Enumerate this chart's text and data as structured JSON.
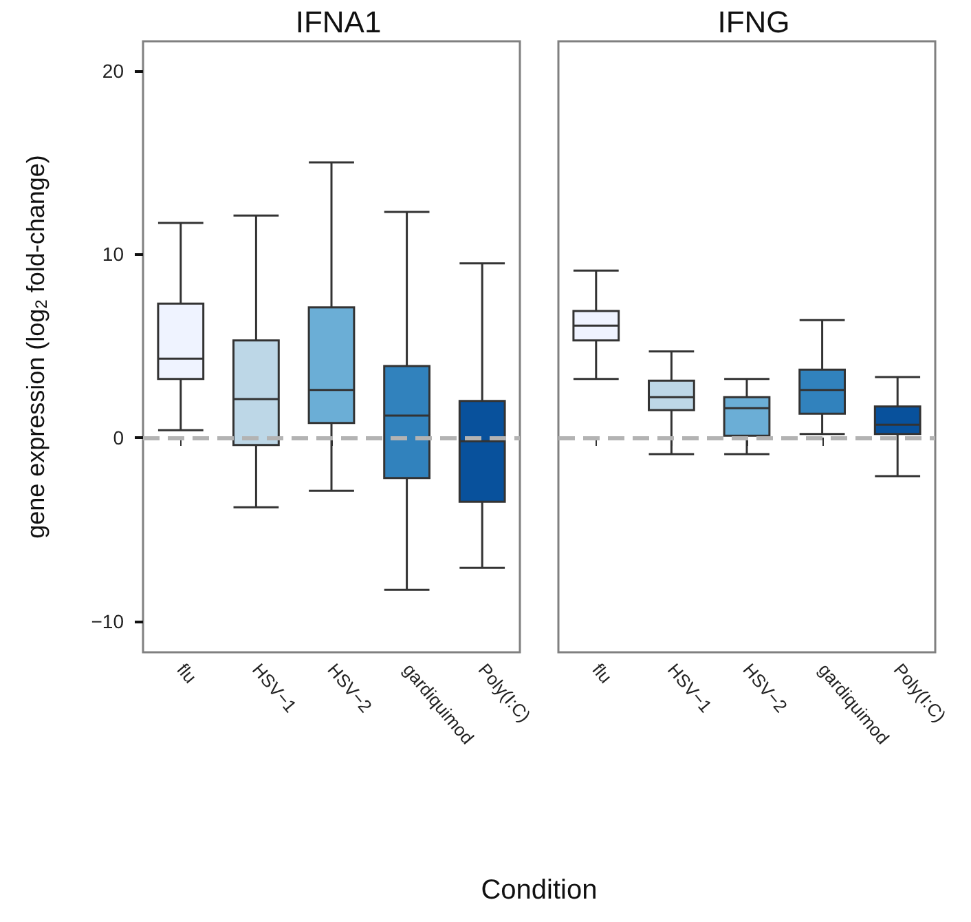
{
  "chart_data": [
    {
      "type": "box",
      "title": "IFNA1",
      "xlabel": "Condition",
      "ylabel": "gene expression (log$_{2}$ fold-change)",
      "categories": [
        "flu",
        "HSV−1",
        "HSV−2",
        "gardiquimod",
        "Poly(I:C)"
      ],
      "colors": [
        "#eff3ff",
        "#bdd7e7",
        "#6baed6",
        "#3182bd",
        "#08519c"
      ],
      "boxes": [
        {
          "low": 0.4,
          "q1": 3.2,
          "median": 4.3,
          "q3": 7.3,
          "high": 11.7
        },
        {
          "low": -3.8,
          "q1": -0.4,
          "median": 2.1,
          "q3": 5.3,
          "high": 12.1
        },
        {
          "low": -2.9,
          "q1": 0.8,
          "median": 2.6,
          "q3": 7.1,
          "high": 15
        },
        {
          "low": -8.3,
          "q1": -2.2,
          "median": 1.2,
          "q3": 3.9,
          "high": 12.3
        },
        {
          "low": -7.1,
          "q1": -3.5,
          "median": -0.2,
          "q3": 2,
          "high": 9.5
        }
      ],
      "ylim": [
        -11.7,
        21.6
      ],
      "yticks": [
        -10,
        0,
        10,
        20
      ],
      "grid": false,
      "ref_lines": [
        {
          "axis": "y",
          "value": 0,
          "color": "#b3b3b3",
          "line_style": "dashed"
        }
      ]
    },
    {
      "type": "box",
      "title": "IFNG",
      "categories": [
        "flu",
        "HSV−1",
        "HSV−2",
        "gardiquimod",
        "Poly(I:C)"
      ],
      "colors": [
        "#eff3ff",
        "#bdd7e7",
        "#6baed6",
        "#3182bd",
        "#08519c"
      ],
      "boxes": [
        {
          "low": 3.2,
          "q1": 5.3,
          "median": 6.1,
          "q3": 6.9,
          "high": 9.1
        },
        {
          "low": -0.9,
          "q1": 1.5,
          "median": 2.2,
          "q3": 3.1,
          "high": 4.7
        },
        {
          "low": -0.9,
          "q1": 0.1,
          "median": 1.6,
          "q3": 2.2,
          "high": 3.2
        },
        {
          "low": 0.2,
          "q1": 1.3,
          "median": 2.6,
          "q3": 3.7,
          "high": 6.4
        },
        {
          "low": -2.1,
          "q1": 0.2,
          "median": 0.7,
          "q3": 1.7,
          "high": 3.3
        }
      ],
      "ylim": [
        -11.7,
        21.6
      ],
      "yticks": [
        -10,
        0,
        10,
        20
      ],
      "grid": false,
      "tick_labels": "x",
      "ref_lines": [
        {
          "axis": "y",
          "value": 0,
          "color": "#b3b3b3",
          "line_style": "dashed"
        }
      ]
    }
  ]
}
